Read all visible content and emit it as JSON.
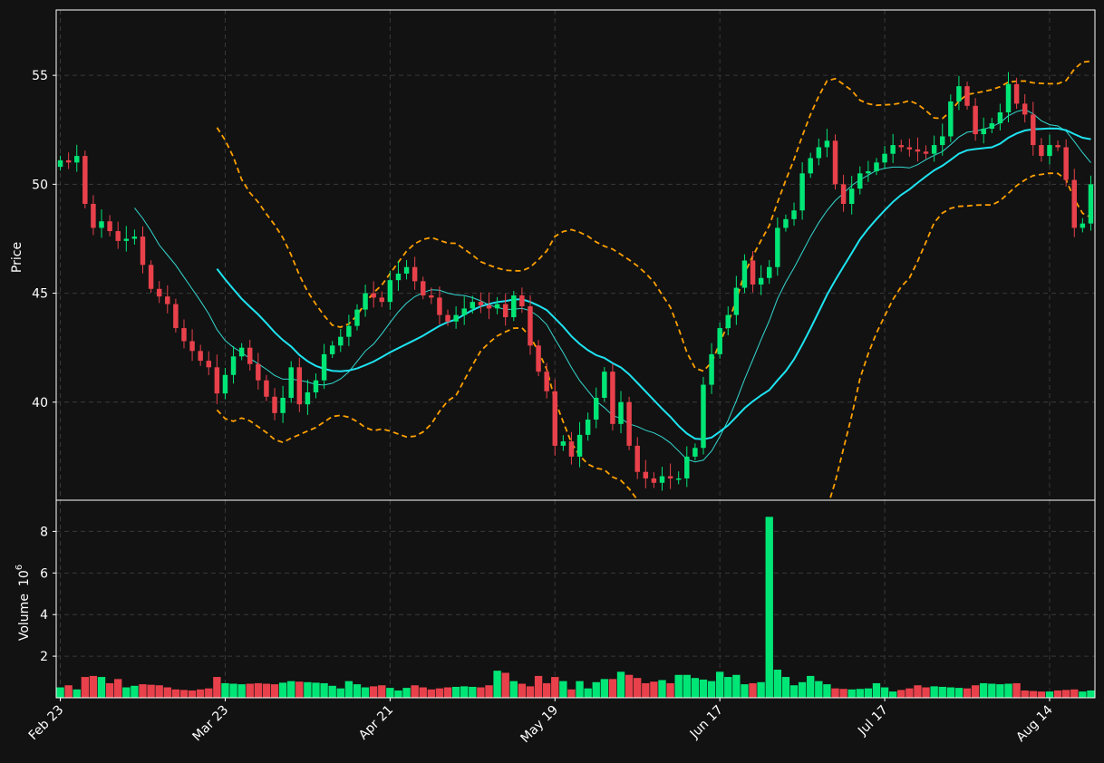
{
  "chart_data": {
    "type": "candlestick",
    "price_axis": {
      "label": "Price",
      "ylim": [
        35.5,
        58.0
      ],
      "ticks": [
        40,
        45,
        50,
        55
      ]
    },
    "volume_axis": {
      "label": "Volume",
      "exponent_label": "10",
      "exponent": "6",
      "ylim": [
        0,
        9.5
      ],
      "ticks": [
        2,
        4,
        6,
        8
      ]
    },
    "x_axis": {
      "tick_labels": [
        {
          "label": "Feb 23",
          "index": 0
        },
        {
          "label": "Mar 23",
          "index": 20
        },
        {
          "label": "Apr 21",
          "index": 40
        },
        {
          "label": "May 19",
          "index": 60
        },
        {
          "label": "Jun 17",
          "index": 80
        },
        {
          "label": "Jul 17",
          "index": 100
        },
        {
          "label": "Aug 14",
          "index": 120
        }
      ],
      "n_bars": 126
    },
    "grid": true,
    "colors": {
      "up": "#00e676",
      "down": "#e8414b",
      "ma_fast": "#34d8d0",
      "ma_slow": "#1ee3f0",
      "bands": "#ffa000",
      "background": "#121212"
    },
    "close_anchors": [
      [
        0,
        51.1
      ],
      [
        1,
        51.0
      ],
      [
        2,
        51.3
      ],
      [
        3,
        49.1
      ],
      [
        4,
        48.0
      ],
      [
        5,
        48.3
      ],
      [
        7,
        47.4
      ],
      [
        9,
        47.6
      ],
      [
        10,
        46.3
      ],
      [
        11,
        45.2
      ],
      [
        13,
        44.5
      ],
      [
        14,
        43.4
      ],
      [
        15,
        42.8
      ],
      [
        17,
        41.9
      ],
      [
        18,
        41.6
      ],
      [
        19,
        40.4
      ],
      [
        21,
        42.1
      ],
      [
        22,
        42.5
      ],
      [
        24,
        41.0
      ],
      [
        26,
        39.5
      ],
      [
        27,
        40.2
      ],
      [
        28,
        41.6
      ],
      [
        29,
        39.9
      ],
      [
        31,
        41.0
      ],
      [
        32,
        42.2
      ],
      [
        34,
        43.0
      ],
      [
        35,
        43.5
      ],
      [
        37,
        45.0
      ],
      [
        39,
        44.6
      ],
      [
        40,
        45.6
      ],
      [
        42,
        46.2
      ],
      [
        44,
        44.9
      ],
      [
        45,
        44.8
      ],
      [
        46,
        44.0
      ],
      [
        47,
        43.7
      ],
      [
        50,
        44.6
      ],
      [
        52,
        44.3
      ],
      [
        53,
        44.5
      ],
      [
        54,
        43.9
      ],
      [
        55,
        44.9
      ],
      [
        56,
        44.4
      ],
      [
        57,
        42.6
      ],
      [
        58,
        41.4
      ],
      [
        59,
        40.5
      ],
      [
        60,
        38.0
      ],
      [
        61,
        38.2
      ],
      [
        62,
        37.5
      ],
      [
        63,
        38.5
      ],
      [
        64,
        39.2
      ],
      [
        65,
        40.2
      ],
      [
        66,
        41.4
      ],
      [
        67,
        39.0
      ],
      [
        68,
        40.0
      ],
      [
        69,
        38.0
      ],
      [
        70,
        36.8
      ],
      [
        71,
        36.5
      ],
      [
        72,
        36.3
      ],
      [
        73,
        36.6
      ],
      [
        74,
        36.5
      ],
      [
        75,
        36.5
      ],
      [
        76,
        37.5
      ],
      [
        77,
        37.9
      ],
      [
        78,
        40.8
      ],
      [
        79,
        42.2
      ],
      [
        80,
        43.4
      ],
      [
        81,
        44.0
      ],
      [
        83,
        46.5
      ],
      [
        84,
        45.4
      ],
      [
        85,
        45.7
      ],
      [
        86,
        46.2
      ],
      [
        87,
        48.0
      ],
      [
        89,
        48.8
      ],
      [
        90,
        50.5
      ],
      [
        91,
        51.2
      ],
      [
        92,
        51.7
      ],
      [
        93,
        52.0
      ],
      [
        94,
        50.0
      ],
      [
        95,
        49.1
      ],
      [
        96,
        49.8
      ],
      [
        97,
        50.5
      ],
      [
        98,
        50.6
      ],
      [
        100,
        51.4
      ],
      [
        101,
        51.8
      ],
      [
        103,
        51.6
      ],
      [
        105,
        51.4
      ],
      [
        107,
        52.2
      ],
      [
        108,
        53.8
      ],
      [
        109,
        54.5
      ],
      [
        110,
        53.6
      ],
      [
        111,
        52.3
      ],
      [
        113,
        52.8
      ],
      [
        114,
        53.3
      ],
      [
        115,
        54.6
      ],
      [
        116,
        53.7
      ],
      [
        117,
        53.2
      ],
      [
        118,
        51.8
      ],
      [
        119,
        51.3
      ],
      [
        120,
        51.8
      ],
      [
        121,
        51.7
      ],
      [
        122,
        50.2
      ],
      [
        123,
        48.0
      ],
      [
        124,
        48.2
      ],
      [
        125,
        50.0
      ]
    ],
    "volume_anchors": [
      [
        0,
        0.5
      ],
      [
        1,
        0.6
      ],
      [
        2,
        0.4
      ],
      [
        3,
        1.0
      ],
      [
        4,
        1.05
      ],
      [
        5,
        1.0
      ],
      [
        6,
        0.7
      ],
      [
        7,
        0.9
      ],
      [
        8,
        0.5
      ],
      [
        10,
        0.65
      ],
      [
        12,
        0.6
      ],
      [
        14,
        0.4
      ],
      [
        16,
        0.35
      ],
      [
        18,
        0.45
      ],
      [
        19,
        1.0
      ],
      [
        20,
        0.7
      ],
      [
        22,
        0.65
      ],
      [
        24,
        0.7
      ],
      [
        26,
        0.65
      ],
      [
        28,
        0.8
      ],
      [
        30,
        0.75
      ],
      [
        32,
        0.7
      ],
      [
        34,
        0.45
      ],
      [
        35,
        0.8
      ],
      [
        37,
        0.5
      ],
      [
        39,
        0.6
      ],
      [
        41,
        0.35
      ],
      [
        43,
        0.6
      ],
      [
        45,
        0.4
      ],
      [
        47,
        0.5
      ],
      [
        49,
        0.55
      ],
      [
        51,
        0.5
      ],
      [
        52,
        0.6
      ],
      [
        53,
        1.3
      ],
      [
        54,
        1.2
      ],
      [
        55,
        0.8
      ],
      [
        57,
        0.55
      ],
      [
        58,
        1.05
      ],
      [
        59,
        0.7
      ],
      [
        60,
        1.0
      ],
      [
        61,
        0.8
      ],
      [
        62,
        0.4
      ],
      [
        63,
        0.8
      ],
      [
        64,
        0.45
      ],
      [
        65,
        0.75
      ],
      [
        66,
        0.9
      ],
      [
        67,
        0.9
      ],
      [
        68,
        1.25
      ],
      [
        69,
        1.1
      ],
      [
        70,
        0.95
      ],
      [
        71,
        0.7
      ],
      [
        73,
        0.85
      ],
      [
        74,
        0.7
      ],
      [
        75,
        1.1
      ],
      [
        76,
        1.1
      ],
      [
        77,
        0.95
      ],
      [
        79,
        0.8
      ],
      [
        80,
        1.25
      ],
      [
        81,
        1.0
      ],
      [
        82,
        1.1
      ],
      [
        83,
        0.65
      ],
      [
        85,
        0.75
      ],
      [
        86,
        8.7
      ],
      [
        87,
        1.35
      ],
      [
        88,
        1.0
      ],
      [
        89,
        0.6
      ],
      [
        90,
        0.75
      ],
      [
        91,
        1.05
      ],
      [
        92,
        0.8
      ],
      [
        93,
        0.65
      ],
      [
        94,
        0.45
      ],
      [
        96,
        0.4
      ],
      [
        98,
        0.45
      ],
      [
        99,
        0.7
      ],
      [
        100,
        0.5
      ],
      [
        101,
        0.3
      ],
      [
        103,
        0.45
      ],
      [
        104,
        0.6
      ],
      [
        105,
        0.5
      ],
      [
        106,
        0.55
      ],
      [
        108,
        0.5
      ],
      [
        110,
        0.45
      ],
      [
        111,
        0.6
      ],
      [
        112,
        0.7
      ],
      [
        114,
        0.65
      ],
      [
        116,
        0.7
      ],
      [
        117,
        0.35
      ],
      [
        119,
        0.3
      ],
      [
        120,
        0.3
      ],
      [
        121,
        0.35
      ],
      [
        123,
        0.4
      ],
      [
        124,
        0.3
      ],
      [
        125,
        0.35
      ]
    ]
  }
}
